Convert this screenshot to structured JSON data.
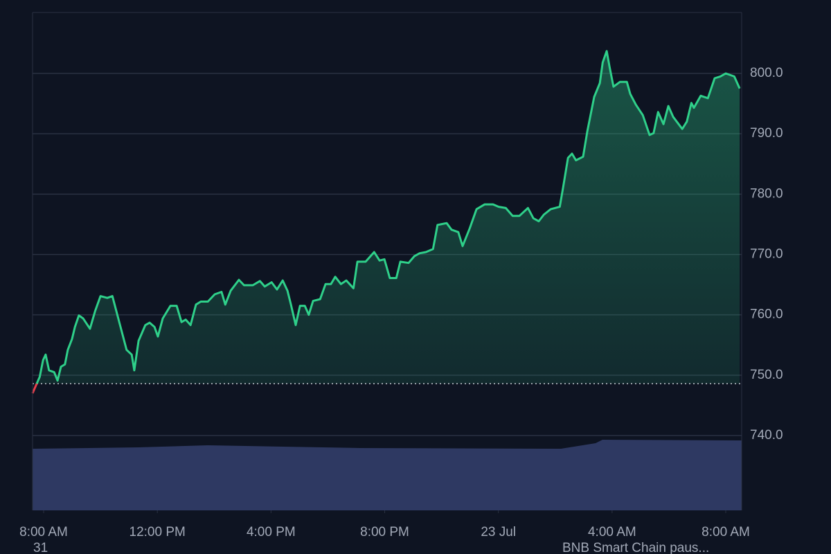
{
  "chart_data": {
    "type": "area",
    "x": [
      -0.39,
      -0.26,
      -0.14,
      -0.02,
      0.07,
      0.19,
      0.37,
      0.49,
      0.61,
      0.75,
      0.85,
      1.0,
      1.1,
      1.24,
      1.39,
      1.63,
      1.81,
      2.0,
      2.24,
      2.42,
      2.66,
      2.92,
      3.1,
      3.19,
      3.34,
      3.58,
      3.73,
      3.9,
      4.02,
      4.19,
      4.46,
      4.68,
      4.85,
      5.0,
      5.17,
      5.36,
      5.53,
      5.78,
      6.02,
      6.26,
      6.39,
      6.58,
      6.87,
      7.05,
      7.36,
      7.61,
      7.78,
      8.02,
      8.21,
      8.41,
      8.58,
      8.7,
      8.87,
      9.02,
      9.19,
      9.33,
      9.48,
      9.73,
      9.92,
      10.11,
      10.26,
      10.46,
      10.65,
      10.9,
      11.04,
      11.33,
      11.63,
      11.82,
      11.99,
      12.18,
      12.41,
      12.55,
      12.84,
      13.04,
      13.23,
      13.45,
      13.7,
      13.86,
      14.18,
      14.35,
      14.59,
      14.74,
      14.99,
      15.23,
      15.52,
      15.81,
      16.01,
      16.26,
      16.5,
      16.74,
      17.04,
      17.23,
      17.42,
      17.6,
      17.84,
      18.16,
      18.28,
      18.45,
      18.59,
      18.73,
      18.98,
      19.13,
      19.37,
      19.57,
      19.67,
      19.81,
      19.91,
      20.05,
      20.28,
      20.52,
      20.64,
      20.84,
      21.08,
      21.32,
      21.46,
      21.62,
      21.81,
      21.98,
      22.15,
      22.47,
      22.63,
      22.79,
      22.88,
      23.12,
      23.37,
      23.61,
      23.81,
      24.0,
      24.3,
      24.49
    ],
    "values": [
      747.0,
      748.4,
      749.7,
      752.5,
      753.4,
      750.8,
      750.5,
      749.1,
      751.4,
      751.8,
      754.2,
      756.0,
      758.0,
      759.9,
      759.4,
      757.7,
      760.6,
      763.1,
      762.8,
      763.1,
      758.8,
      754.2,
      753.4,
      750.8,
      755.7,
      758.3,
      758.7,
      758.0,
      756.4,
      759.4,
      761.5,
      761.5,
      758.8,
      759.2,
      758.3,
      761.7,
      762.2,
      762.2,
      763.4,
      763.8,
      761.7,
      764.0,
      765.8,
      764.9,
      764.9,
      765.6,
      764.7,
      765.4,
      764.2,
      765.7,
      764.0,
      761.7,
      758.3,
      761.5,
      761.5,
      760.0,
      762.3,
      762.6,
      765.1,
      765.1,
      766.3,
      765.1,
      765.7,
      764.4,
      768.8,
      768.8,
      770.4,
      769.0,
      769.2,
      766.1,
      766.1,
      768.8,
      768.6,
      769.7,
      770.2,
      770.4,
      770.9,
      774.9,
      775.2,
      774.1,
      773.7,
      771.4,
      774.3,
      777.5,
      778.3,
      778.3,
      777.9,
      777.7,
      776.4,
      776.4,
      777.7,
      776.0,
      775.5,
      776.6,
      777.5,
      777.9,
      781.2,
      786.0,
      786.7,
      785.6,
      786.2,
      790.4,
      796.1,
      798.4,
      801.8,
      803.7,
      801.1,
      797.8,
      798.6,
      798.6,
      796.6,
      794.8,
      793.1,
      789.8,
      790.1,
      793.6,
      791.6,
      794.6,
      792.8,
      790.8,
      792.0,
      795.1,
      794.3,
      796.3,
      795.9,
      799.2,
      799.5,
      800.0,
      799.5,
      797.5
    ],
    "color": "#2fd08a",
    "down_color": "#e8404c",
    "baseline": 748.6,
    "xlim": [
      -0.39,
      24.56
    ],
    "xticks": [
      {
        "value": 0,
        "label": "8:00 AM"
      },
      {
        "value": 4,
        "label": "12:00 PM"
      },
      {
        "value": 8,
        "label": "4:00 PM"
      },
      {
        "value": 12,
        "label": "8:00 PM"
      },
      {
        "value": 16,
        "label": "23 Jul"
      },
      {
        "value": 20,
        "label": "4:00 AM"
      },
      {
        "value": 24,
        "label": "8:00 AM"
      }
    ],
    "ylim": [
      727.6,
      810.1
    ],
    "yticks": [
      {
        "value": 740,
        "label": "740.0"
      },
      {
        "value": 750,
        "label": "750.0"
      },
      {
        "value": 760,
        "label": "760.0"
      },
      {
        "value": 770,
        "label": "770.0"
      },
      {
        "value": 780,
        "label": "780.0"
      },
      {
        "value": 790,
        "label": "790.0"
      },
      {
        "value": 800,
        "label": "800.0"
      }
    ],
    "grid": true,
    "date_label": "31",
    "news_label": "BNB Smart Chain paus..."
  }
}
